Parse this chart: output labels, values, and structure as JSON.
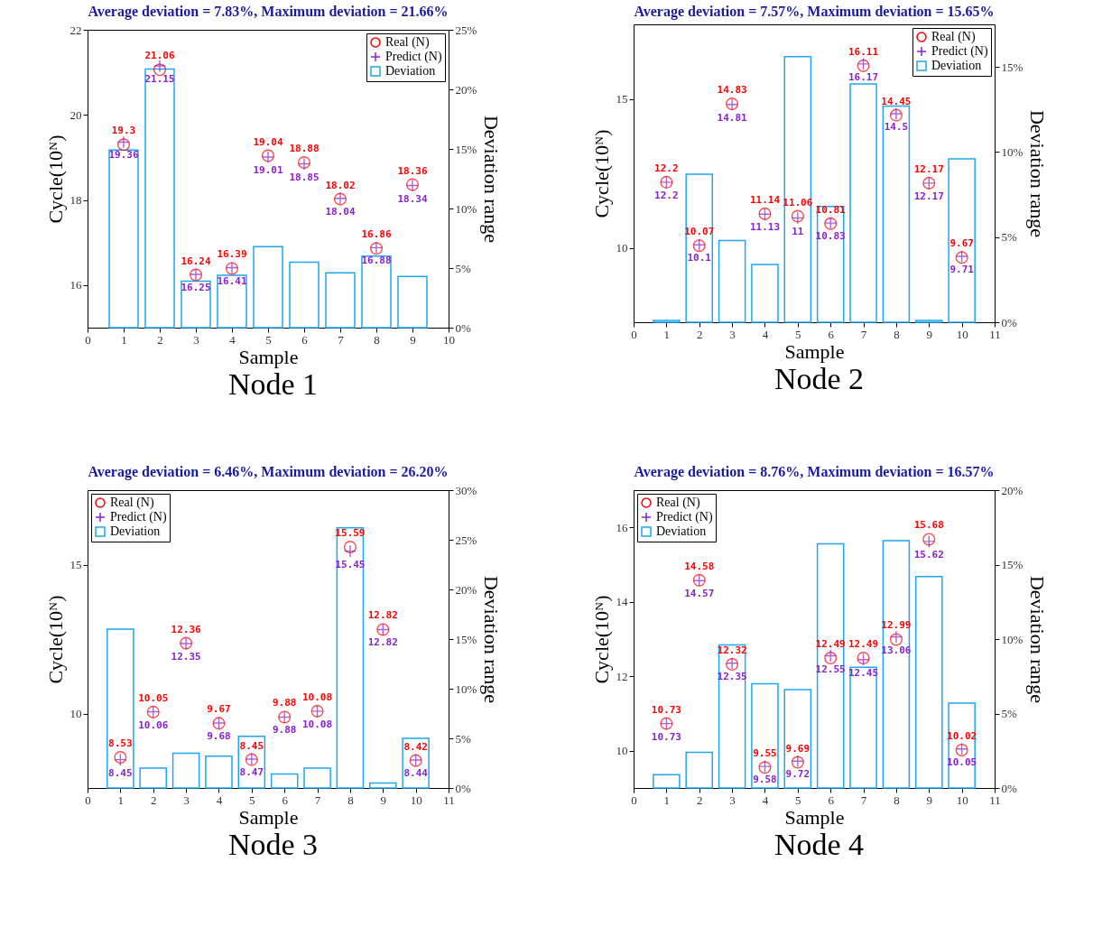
{
  "chart_data": [
    {
      "type": "scatter",
      "title": "Average deviation = 7.83%, Maximum deviation = 21.66%",
      "xlabel": "Sample",
      "ylabel": "Cycle(10ᴺ)",
      "y2label": "Deviation range",
      "annotations": [
        "Node 1"
      ],
      "x": [
        1,
        2,
        3,
        4,
        5,
        6,
        7,
        8,
        9
      ],
      "xlim": [
        0,
        10
      ],
      "xticks": [
        0,
        1,
        2,
        3,
        4,
        5,
        6,
        7,
        8,
        9,
        10
      ],
      "ylim": [
        15,
        22
      ],
      "yticks": [
        16,
        18,
        20,
        22
      ],
      "y2lim": [
        0,
        25
      ],
      "y2ticks": [
        {
          "value": 0,
          "label": "0%"
        },
        {
          "value": 5,
          "label": "5%"
        },
        {
          "value": 10,
          "label": "10%"
        },
        {
          "value": 15,
          "label": "15%"
        },
        {
          "value": 20,
          "label": "20%"
        },
        {
          "value": 25,
          "label": "25%"
        }
      ],
      "legend": "top right",
      "grid": false,
      "series": [
        {
          "name": "Real (N)",
          "marker": "circle",
          "color": "#ff0000",
          "values": [
            19.3,
            21.06,
            16.24,
            16.39,
            19.04,
            18.88,
            18.02,
            16.86,
            18.36
          ],
          "value_labels": [
            "19.3",
            "21.06",
            "16.24",
            "16.39",
            "19.04",
            "18.88",
            "18.02",
            "16.86",
            "18.36"
          ]
        },
        {
          "name": "Predict (N)",
          "marker": "cross",
          "color": "#8a1fd0",
          "values": [
            19.36,
            21.15,
            16.25,
            16.41,
            19.01,
            18.85,
            18.04,
            16.88,
            18.34
          ],
          "value_labels": [
            "19.36",
            "21.15",
            "16.25",
            "16.41",
            "19.01",
            "18.85",
            "18.04",
            "16.88",
            "18.34"
          ]
        },
        {
          "name": "Deviation",
          "type": "bar",
          "axis": "y2",
          "color": "#1ea7f0",
          "values": [
            14.9,
            21.7,
            3.9,
            4.4,
            6.8,
            5.5,
            4.6,
            6.0,
            4.3
          ]
        }
      ]
    },
    {
      "type": "scatter",
      "title": "Average deviation = 7.57%, Maximum deviation = 15.65%",
      "xlabel": "Sample",
      "ylabel": "Cycle(10ᴺ)",
      "y2label": "Deviation range",
      "annotations": [
        "Node 2"
      ],
      "x": [
        1,
        2,
        3,
        4,
        5,
        6,
        7,
        8,
        9,
        10
      ],
      "xlim": [
        0,
        11
      ],
      "xticks": [
        0,
        1,
        2,
        3,
        4,
        5,
        6,
        7,
        8,
        9,
        10,
        11
      ],
      "ylim": [
        7.5,
        17.5
      ],
      "yticks": [
        10,
        15
      ],
      "y2lim": [
        0,
        17.5
      ],
      "y2ticks": [
        {
          "value": 0,
          "label": "0%"
        },
        {
          "value": 5,
          "label": "5%"
        },
        {
          "value": 10,
          "label": "10%"
        },
        {
          "value": 15,
          "label": "15%"
        }
      ],
      "legend": "top right",
      "grid": false,
      "series": [
        {
          "name": "Real (N)",
          "marker": "circle",
          "color": "#ff0000",
          "values": [
            12.2,
            10.07,
            14.83,
            11.14,
            11.06,
            10.81,
            16.11,
            14.45,
            12.17,
            9.67
          ],
          "value_labels": [
            "12.2",
            "10.07",
            "14.83",
            "11.14",
            "11.06",
            "10.81",
            "16.11",
            "14.45",
            "12.17",
            "9.67"
          ]
        },
        {
          "name": "Predict (N)",
          "marker": "cross",
          "color": "#8a1fd0",
          "values": [
            12.2,
            10.1,
            14.81,
            11.13,
            11,
            10.83,
            16.17,
            14.5,
            12.17,
            9.71
          ],
          "value_labels": [
            "12.2",
            "10.1",
            "14.81",
            "11.13",
            "11",
            "10.83",
            "16.17",
            "14.5",
            "12.17",
            "9.71"
          ]
        },
        {
          "name": "Deviation",
          "type": "bar",
          "axis": "y2",
          "color": "#1ea7f0",
          "values": [
            0.1,
            8.7,
            4.8,
            3.4,
            15.6,
            6.8,
            14.0,
            12.7,
            0.1,
            9.6
          ]
        }
      ]
    },
    {
      "type": "scatter",
      "title": "Average deviation = 6.46%, Maximum deviation = 26.20%",
      "xlabel": "Sample",
      "ylabel": "Cycle(10ᴺ)",
      "y2label": "Deviation range",
      "annotations": [
        "Node 3"
      ],
      "x": [
        1,
        2,
        3,
        4,
        5,
        6,
        7,
        8,
        9,
        10
      ],
      "xlim": [
        0,
        11
      ],
      "xticks": [
        0,
        1,
        2,
        3,
        4,
        5,
        6,
        7,
        8,
        9,
        10,
        11
      ],
      "ylim": [
        7.5,
        17.5
      ],
      "yticks": [
        10,
        15
      ],
      "y2lim": [
        0,
        30
      ],
      "y2ticks": [
        {
          "value": 0,
          "label": "0%"
        },
        {
          "value": 5,
          "label": "5%"
        },
        {
          "value": 10,
          "label": "10%"
        },
        {
          "value": 15,
          "label": "15%"
        },
        {
          "value": 20,
          "label": "20%"
        },
        {
          "value": 25,
          "label": "25%"
        },
        {
          "value": 30,
          "label": "30%"
        }
      ],
      "legend": "top left",
      "grid": false,
      "series": [
        {
          "name": "Real (N)",
          "marker": "circle",
          "color": "#ff0000",
          "values": [
            8.53,
            10.05,
            12.36,
            9.67,
            8.45,
            9.88,
            10.08,
            15.59,
            12.82,
            8.42
          ],
          "value_labels": [
            "8.53",
            "10.05",
            "12.36",
            "9.67",
            "8.45",
            "9.88",
            "10.08",
            "15.59",
            "12.82",
            "8.42"
          ]
        },
        {
          "name": "Predict (N)",
          "marker": "cross",
          "color": "#8a1fd0",
          "values": [
            8.45,
            10.06,
            12.35,
            9.68,
            8.47,
            9.88,
            10.08,
            15.45,
            12.82,
            8.44
          ],
          "value_labels": [
            "8.45",
            "10.06",
            "12.35",
            "9.68",
            "8.47",
            "9.88",
            "10.08",
            "15.45",
            "12.82",
            "8.44"
          ]
        },
        {
          "name": "Deviation",
          "type": "bar",
          "axis": "y2",
          "color": "#1ea7f0",
          "values": [
            16.0,
            2.0,
            3.5,
            3.2,
            5.2,
            1.4,
            2.0,
            26.2,
            0.5,
            5.0
          ]
        }
      ]
    },
    {
      "type": "scatter",
      "title": "Average deviation = 8.76%, Maximum deviation = 16.57%",
      "xlabel": "Sample",
      "ylabel": "Cycle(10ᴺ)",
      "y2label": "Deviation range",
      "annotations": [
        "Node 4"
      ],
      "x": [
        1,
        2,
        3,
        4,
        5,
        6,
        7,
        8,
        9,
        10
      ],
      "xlim": [
        0,
        11
      ],
      "xticks": [
        0,
        1,
        2,
        3,
        4,
        5,
        6,
        7,
        8,
        9,
        10,
        11
      ],
      "ylim": [
        9,
        17
      ],
      "yticks": [
        10,
        12,
        14,
        16
      ],
      "y2lim": [
        0,
        20
      ],
      "y2ticks": [
        {
          "value": 0,
          "label": "0%"
        },
        {
          "value": 5,
          "label": "5%"
        },
        {
          "value": 10,
          "label": "10%"
        },
        {
          "value": 15,
          "label": "15%"
        },
        {
          "value": 20,
          "label": "20%"
        }
      ],
      "legend": "top left",
      "grid": false,
      "series": [
        {
          "name": "Real (N)",
          "marker": "circle",
          "color": "#ff0000",
          "values": [
            10.73,
            14.58,
            12.32,
            9.55,
            9.69,
            12.49,
            12.49,
            12.99,
            15.68,
            10.02
          ],
          "value_labels": [
            "10.73",
            "14.58",
            "12.32",
            "9.55",
            "9.69",
            "12.49",
            "12.49",
            "12.99",
            "15.68",
            "10.02"
          ]
        },
        {
          "name": "Predict (N)",
          "marker": "cross",
          "color": "#8a1fd0",
          "values": [
            10.73,
            14.57,
            12.35,
            9.58,
            9.72,
            12.55,
            12.45,
            13.06,
            15.62,
            10.05
          ],
          "value_labels": [
            "10.73",
            "14.57",
            "12.35",
            "9.58",
            "9.72",
            "12.55",
            "12.45",
            "13.06",
            "15.62",
            "10.05"
          ]
        },
        {
          "name": "Deviation",
          "type": "bar",
          "axis": "y2",
          "color": "#1ea7f0",
          "values": [
            0.9,
            2.4,
            9.6,
            7.0,
            6.6,
            16.4,
            8.1,
            16.6,
            14.2,
            5.7
          ]
        }
      ]
    }
  ]
}
